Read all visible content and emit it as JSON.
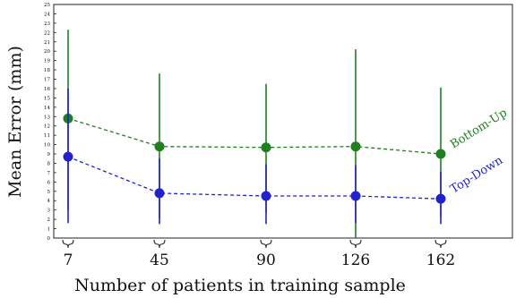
{
  "chart_data": {
    "type": "line",
    "xlabel": "Number of patients in training sample",
    "ylabel": "Mean Error (mm)",
    "categories": [
      "7",
      "45",
      "90",
      "126",
      "162"
    ],
    "ylim": [
      0,
      25
    ],
    "yticks": [
      "0",
      "1",
      "2",
      "3",
      "4",
      "5",
      "6",
      "7",
      "8",
      "9",
      "10",
      "11",
      "12",
      "13",
      "14",
      "15",
      "16",
      "17",
      "18",
      "19",
      "20",
      "21",
      "22",
      "23",
      "24",
      "25"
    ],
    "series": [
      {
        "name": "Bottom-Up",
        "color": "#1f7f1f",
        "values": [
          12.8,
          9.8,
          9.7,
          9.8,
          9.0
        ],
        "err_low": [
          3.0,
          2.1,
          2.7,
          0.0,
          2.3
        ],
        "err_high": [
          22.3,
          17.6,
          16.5,
          20.2,
          16.1
        ]
      },
      {
        "name": "Top-Down",
        "color": "#2222cc",
        "values": [
          8.7,
          4.8,
          4.5,
          4.5,
          4.2
        ],
        "err_low": [
          1.6,
          1.5,
          1.5,
          1.6,
          1.5
        ],
        "err_high": [
          16.0,
          8.5,
          7.9,
          7.8,
          7.1
        ]
      }
    ]
  }
}
